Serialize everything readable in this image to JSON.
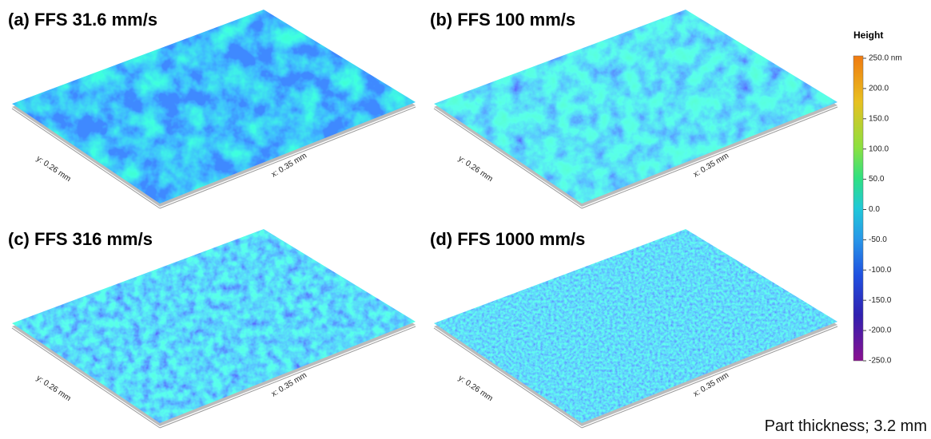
{
  "panels": [
    {
      "title": "(a) FFS 31.6 mm/s",
      "y_axis_label": "y: 0.26 mm",
      "x_axis_label": "x: 0.35 mm"
    },
    {
      "title": "(b) FFS 100 mm/s",
      "y_axis_label": "y: 0.26 mm",
      "x_axis_label": "x: 0.35 mm"
    },
    {
      "title": "(c) FFS 316 mm/s",
      "y_axis_label": "y: 0.26 mm",
      "x_axis_label": "x: 0.35 mm"
    },
    {
      "title": "(d) FFS 1000 mm/s",
      "y_axis_label": "y: 0.26 mm",
      "x_axis_label": "x: 0.35 mm"
    }
  ],
  "colorbar": {
    "title": "Height",
    "ticks": [
      "250.0 nm",
      "200.0",
      "150.0",
      "100.0",
      "50.0",
      "0.0",
      "-50.0",
      "-100.0",
      "-150.0",
      "-200.0",
      "-250.0"
    ]
  },
  "footnote": "Part thickness; 3.2 mm"
}
